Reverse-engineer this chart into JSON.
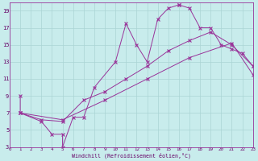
{
  "xlabel": "Windchill (Refroidissement éolien,°C)",
  "background_color": "#c8ecec",
  "grid_color": "#aad4d4",
  "line_color": "#993399",
  "xlim": [
    0,
    23
  ],
  "ylim": [
    3,
    20
  ],
  "xticks": [
    0,
    1,
    2,
    3,
    4,
    5,
    6,
    7,
    8,
    9,
    10,
    11,
    12,
    13,
    14,
    15,
    16,
    17,
    18,
    19,
    20,
    21,
    22,
    23
  ],
  "yticks": [
    3,
    5,
    7,
    9,
    11,
    13,
    15,
    17,
    19
  ],
  "line1_x": [
    1,
    1,
    3,
    4,
    5,
    5,
    6,
    7,
    8,
    10,
    11,
    12,
    13,
    14,
    15,
    16,
    16,
    17,
    18,
    19,
    20,
    21,
    22,
    23
  ],
  "line1_y": [
    9,
    7,
    6,
    4.5,
    4.5,
    3,
    6.5,
    6.5,
    10,
    13,
    17.5,
    15,
    13,
    18,
    19.3,
    19.7,
    19.7,
    19.3,
    17,
    17,
    15,
    14.5,
    14,
    12.5
  ],
  "line2_x": [
    1,
    3,
    5,
    7,
    9,
    11,
    13,
    15,
    17,
    19,
    21,
    23
  ],
  "line2_y": [
    7,
    6.2,
    6,
    8.5,
    9.5,
    11,
    12.5,
    14.3,
    15.5,
    16.5,
    15,
    12.5
  ],
  "line3_x": [
    1,
    5,
    9,
    13,
    17,
    21,
    23
  ],
  "line3_y": [
    7,
    6.2,
    8.5,
    11,
    13.5,
    15.2,
    11.5
  ]
}
